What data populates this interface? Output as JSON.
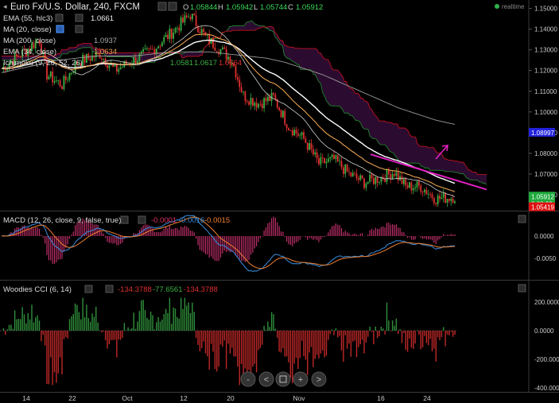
{
  "header": {
    "symbol": "Euro Fx/U.S. Dollar, 240, FXCM",
    "open_label": "O",
    "open": "1.05844",
    "high_label": "H",
    "high": "1.05942",
    "low_label": "L",
    "low": "1.05744",
    "close_label": "C",
    "close": "1.05912",
    "realtime": "realtime"
  },
  "indicators": [
    {
      "label": "EMA (55, hlc3)",
      "value": "1.0661"
    },
    {
      "label": "MA (20, close)",
      "value": ""
    },
    {
      "label": "MA (200, close)",
      "value": "1.0937"
    },
    {
      "label": "EMA (34, close)",
      "value": "1.0634"
    },
    {
      "label": "Ichimoku (9, 26, 52, 26)",
      "values": [
        "1.0581",
        "1.0617",
        "1.0664"
      ]
    }
  ],
  "macd": {
    "label": "MACD (12, 26, close, 9, false, true)",
    "values": [
      "-0.0001",
      "-0.0016",
      "-0.0015"
    ]
  },
  "cci": {
    "label": "Woodies CCI (6, 14)",
    "values": [
      "-134.3788",
      "-77.6561",
      "-134.3788"
    ]
  },
  "price_axis": {
    "ticks": [
      "1.15000",
      "1.14000",
      "1.13000",
      "1.12000",
      "1.11000",
      "1.10000",
      "1.09000",
      "1.08000",
      "1.07000",
      "1.06000"
    ],
    "badges": [
      {
        "label": "1.08997",
        "value": 1.08997,
        "color": "#2222dd"
      },
      {
        "label": "1.05912",
        "value": 1.05912,
        "color": "#1faa3d"
      },
      {
        "label": "3:08:33",
        "value": 1.0556,
        "color": "#1faa3d"
      },
      {
        "label": "1.05419",
        "value": 1.054,
        "color": "#dd1111"
      }
    ]
  },
  "macd_axis": {
    "ticks": [
      "0.0000",
      "-0.0050"
    ]
  },
  "cci_axis": {
    "ticks": [
      "200.0000",
      "0.0000",
      "-200.0000",
      "-400.0000"
    ]
  },
  "time_axis": {
    "ticks": [
      "14",
      "22",
      "Oct",
      "12",
      "20",
      "Nov",
      "16",
      "24"
    ]
  },
  "nav_buttons": [
    "-",
    "<",
    "+",
    ">"
  ],
  "colors": {
    "up": "#3cb043",
    "down": "#e03030",
    "ema55": "#ffffff",
    "ma200": "#9a9a9a",
    "ema34": "#e8a050",
    "ma20": "#ffffff",
    "cloud": "#3a1040",
    "trend": "#e020c0",
    "macd": "#3a8fe0",
    "signal": "#f08030"
  },
  "chart_data": {
    "type": "line",
    "title": "Euro Fx/U.S. Dollar, 240, FXCM",
    "xlabel": "",
    "ylabel": "",
    "ylim": [
      1.055,
      1.151
    ],
    "x": [
      0,
      10,
      20,
      30,
      40,
      50,
      60,
      70,
      80,
      90,
      100,
      110,
      120,
      130,
      140,
      150,
      160,
      170,
      180,
      190,
      200,
      210,
      220,
      230,
      240
    ],
    "series": [
      {
        "name": "Euro Fx/U.S. Dollar",
        "values": [
          1.121,
          1.128,
          1.136,
          1.117,
          1.124,
          1.128,
          1.121,
          1.127,
          1.133,
          1.145,
          1.136,
          1.131,
          1.117,
          1.106,
          1.099,
          1.092,
          1.087,
          1.079,
          1.074,
          1.072,
          1.07,
          1.069,
          1.073,
          1.063,
          1.059
        ]
      },
      {
        "name": "MA (200, close)",
        "values": [
          1.119,
          1.121,
          1.123,
          1.125,
          1.126,
          1.127,
          1.127,
          1.127,
          1.128,
          1.129,
          1.129,
          1.129,
          1.128,
          1.127,
          1.126,
          1.124,
          1.121,
          1.118,
          1.114,
          1.11,
          1.106,
          1.102,
          1.099,
          1.096,
          1.094
        ]
      }
    ]
  }
}
